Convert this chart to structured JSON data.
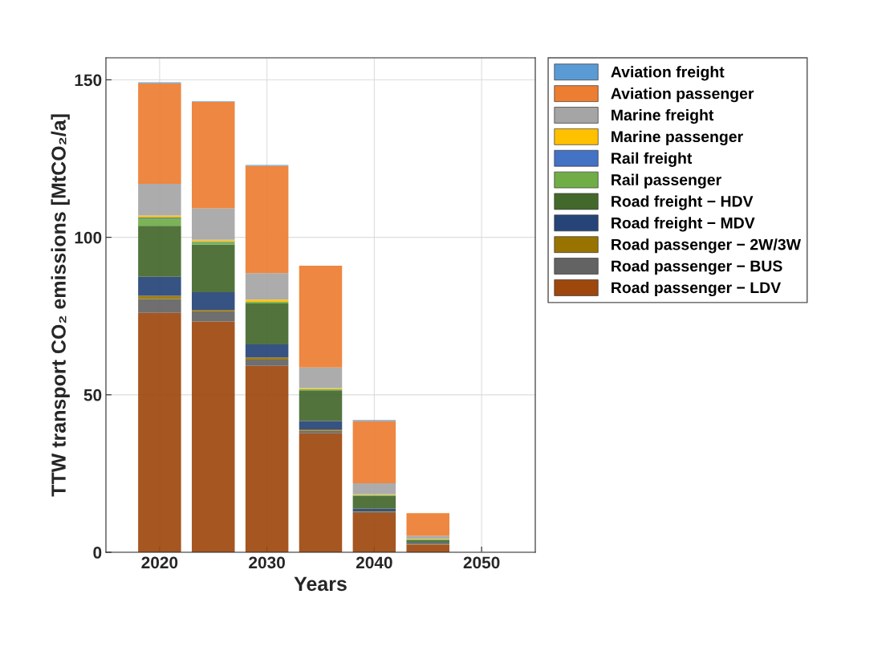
{
  "chart_data": {
    "type": "bar",
    "stacked": true,
    "xlabel": "Years",
    "ylabel": "TTW transport CO₂ emissions [MtCO₂/a]",
    "x": [
      2020,
      2025,
      2030,
      2035,
      2040,
      2045,
      2050
    ],
    "xlim": [
      2015,
      2055
    ],
    "xticks": [
      2020,
      2030,
      2040,
      2050
    ],
    "ylim": [
      0,
      157
    ],
    "yticks": [
      0,
      50,
      100,
      150
    ],
    "grid": true,
    "legend": "top right",
    "series": [
      {
        "name": "Road passenger − LDV",
        "color": "#9e480e",
        "values": [
          76.0,
          73.3,
          59.2,
          37.8,
          12.5,
          2.5,
          0
        ]
      },
      {
        "name": "Road passenger − BUS",
        "color": "#636363",
        "values": [
          4.4,
          3.2,
          2.0,
          0.8,
          0.3,
          0.2,
          0
        ]
      },
      {
        "name": "Road passenger − 2W/3W",
        "color": "#997300",
        "values": [
          1.0,
          0.5,
          0.7,
          0.4,
          0.2,
          0.1,
          0
        ]
      },
      {
        "name": "Road freight − MDV",
        "color": "#264478",
        "values": [
          6.1,
          5.6,
          4.1,
          2.7,
          0.9,
          0.3,
          0
        ]
      },
      {
        "name": "Road freight − HDV",
        "color": "#43682b",
        "values": [
          16.2,
          15.1,
          13.0,
          9.7,
          4.1,
          0.8,
          0
        ]
      },
      {
        "name": "Rail passenger",
        "color": "#70ad47",
        "values": [
          2.3,
          0.8,
          0.5,
          0.4,
          0.2,
          0.2,
          0
        ]
      },
      {
        "name": "Rail freight",
        "color": "#4472c4",
        "values": [
          0.3,
          0.2,
          null,
          null,
          0.0,
          0.0,
          0
        ]
      },
      {
        "name": "Marine passenger",
        "color": "#ffc000",
        "values": [
          0.6,
          0.5,
          0.7,
          0.3,
          0.2,
          0.2,
          0
        ]
      },
      {
        "name": "Marine freight",
        "color": "#a5a5a5",
        "values": [
          10.1,
          10.0,
          8.4,
          6.6,
          3.5,
          0.9,
          0
        ]
      },
      {
        "name": "Aviation passenger",
        "color": "#ed7d31",
        "values": [
          31.9,
          33.8,
          34.1,
          32.3,
          19.8,
          7.2,
          0
        ]
      },
      {
        "name": "Aviation freight",
        "color": "#5b9bd5",
        "values": [
          0.3,
          0.2,
          0.3,
          null,
          0.3,
          null,
          0
        ]
      }
    ]
  }
}
